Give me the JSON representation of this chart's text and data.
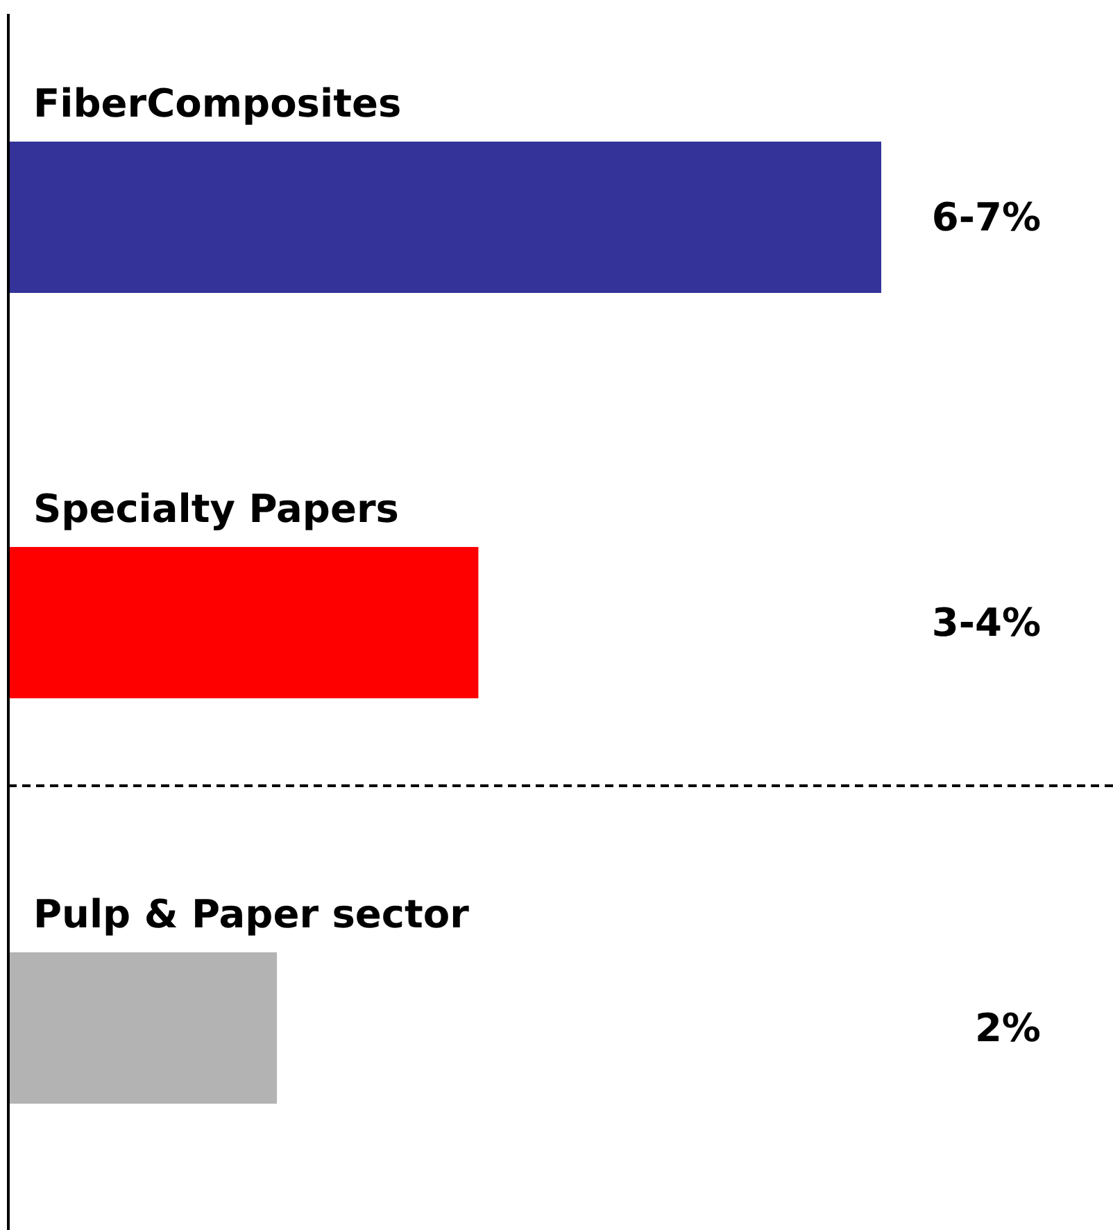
{
  "chart_data": {
    "type": "bar",
    "orientation": "horizontal",
    "tick_labels": false,
    "categories": [
      "FiberComposites",
      "Specialty Papers",
      "Pulp & Paper sector"
    ],
    "values": [
      6.5,
      3.5,
      2
    ],
    "colors": [
      "#333399",
      "#ff0000",
      "#b3b3b3"
    ],
    "value_labels": [
      "6-7%",
      "3-4%",
      "2%"
    ],
    "ref_lines": [
      {
        "axis": "y",
        "value": "Pulp & Paper sector",
        "color": "#000000",
        "line_style": "dashed"
      }
    ]
  }
}
